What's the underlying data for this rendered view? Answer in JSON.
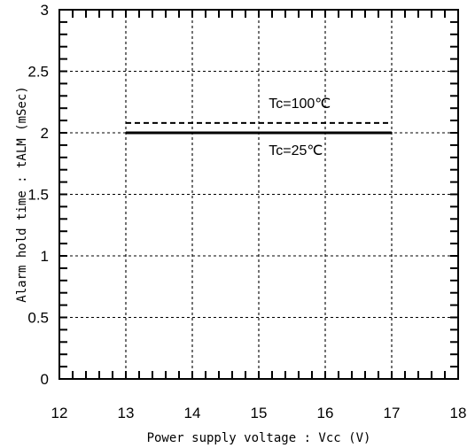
{
  "chart_data": {
    "type": "line",
    "title": "",
    "xlabel": "Power supply voltage : Vcc (V)",
    "ylabel": "Alarm hold time : tALM (mSec)",
    "xlim": [
      12,
      18
    ],
    "ylim": [
      0,
      3
    ],
    "x_ticks": [
      "12",
      "13",
      "14",
      "15",
      "16",
      "17",
      "18"
    ],
    "y_ticks": [
      "0",
      "0.5",
      "1",
      "1.5",
      "2",
      "2.5",
      "3"
    ],
    "grid": true,
    "series": [
      {
        "name": "Tc=25℃",
        "style": "solid",
        "x": [
          13,
          17
        ],
        "y": [
          2.0,
          2.0
        ]
      },
      {
        "name": "Tc=100℃",
        "style": "dashed",
        "x": [
          13,
          17
        ],
        "y": [
          2.08,
          2.08
        ]
      }
    ],
    "annotations": [
      {
        "text": "Tc=100℃",
        "x": 15.15,
        "y": 2.2
      },
      {
        "text": "Tc=25℃",
        "x": 15.15,
        "y": 1.82
      }
    ]
  }
}
